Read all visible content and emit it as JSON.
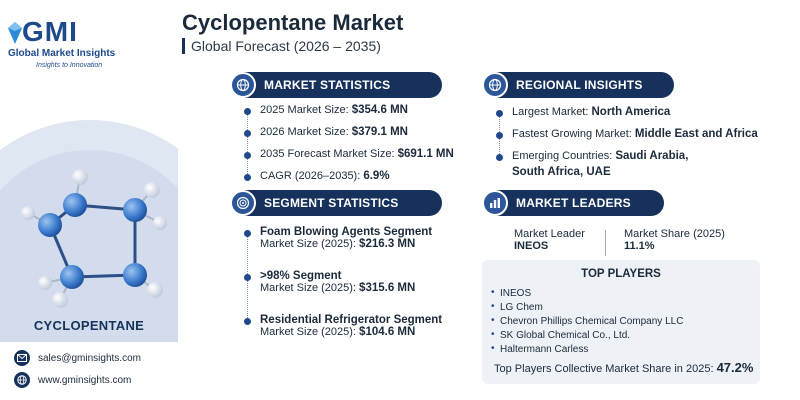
{
  "brand": {
    "logo_mark": "GMI",
    "name": "Global Market Insights",
    "tagline": "Insights to Innovation"
  },
  "header": {
    "title": "Cyclopentane Market",
    "subtitle": "Global Forecast (2026 – 2035)"
  },
  "product_label": "CYCLOPENTANE",
  "contact": {
    "email": "sales@gminsights.com",
    "website": "www.gminsights.com"
  },
  "market_statistics": {
    "heading": "MARKET STATISTICS",
    "rows": [
      {
        "label": "2025 Market Size: ",
        "value": "$354.6 MN"
      },
      {
        "label": "2026 Market Size: ",
        "value": "$379.1 MN"
      },
      {
        "label": "2035 Forecast Market Size: ",
        "value": "$691.1 MN"
      },
      {
        "label": "CAGR (2026–2035): ",
        "value": "6.9%"
      }
    ]
  },
  "regional_insights": {
    "heading": "REGIONAL INSIGHTS",
    "rows": [
      {
        "label": "Largest Market: ",
        "value": "North America"
      },
      {
        "label": "Fastest Growing Market: ",
        "value": "Middle East and Africa"
      },
      {
        "label": "Emerging Countries: ",
        "value": "Saudi Arabia,",
        "value2": "South Africa, UAE"
      }
    ]
  },
  "segment_statistics": {
    "heading": "SEGMENT STATISTICS",
    "items": [
      {
        "name": "Foam Blowing Agents Segment",
        "label": "Market Size (2025): ",
        "value": "$216.3 MN"
      },
      {
        "name": ">98% Segment",
        "label": "Market Size (2025): ",
        "value": "$315.6 MN"
      },
      {
        "name": "Residential Refrigerator Segment",
        "label": "Market Size (2025): ",
        "value": "$104.6 MN"
      }
    ]
  },
  "market_leaders": {
    "heading": "MARKET LEADERS",
    "leader_label": "Market Leader",
    "leader_value": "INEOS",
    "share_label": "Market Share (2025)",
    "share_value": "11.1%"
  },
  "top_players": {
    "heading": "TOP PLAYERS",
    "items": [
      "INEOS",
      "LG Chem",
      "Chevron Phillips Chemical Company LLC",
      "SK Global Chemical Co., Ltd.",
      "Haltermann Carless"
    ],
    "collective_label": "Top Players Collective Market Share in 2025: ",
    "collective_value": "47.2%"
  },
  "colors": {
    "navy": "#16325c",
    "accent": "#2c5697",
    "panel": "#eef1f5"
  }
}
